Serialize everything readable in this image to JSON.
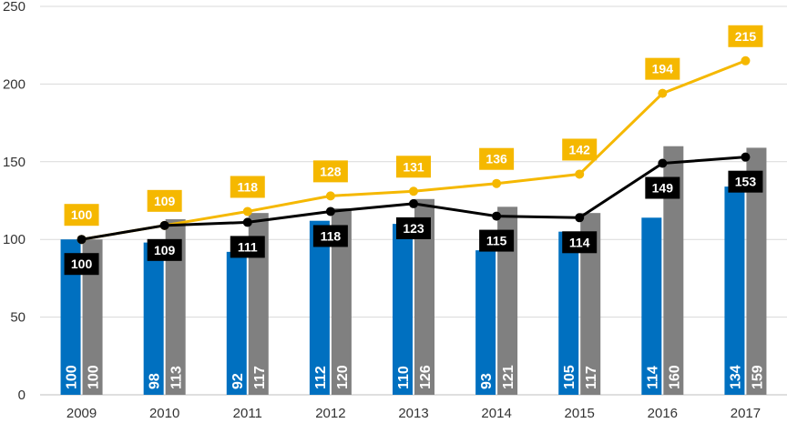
{
  "chart_data": {
    "type": "bar",
    "title": "",
    "xlabel": "",
    "ylabel": "",
    "ylim": [
      0,
      250
    ],
    "yticks": [
      "0",
      "50",
      "100",
      "150",
      "200",
      "250"
    ],
    "grid": true,
    "legend": "none",
    "categories": [
      "2009",
      "2010",
      "2011",
      "2012",
      "2013",
      "2014",
      "2015",
      "2016",
      "2017"
    ],
    "series": [
      {
        "name": "Blue bars",
        "kind": "bar",
        "color": "#0070C0",
        "values": [
          100,
          98,
          92,
          112,
          110,
          93,
          105,
          114,
          134
        ],
        "labels": [
          "100",
          "98",
          "92",
          "112",
          "110",
          "93",
          "105",
          "114",
          "134"
        ]
      },
      {
        "name": "Grey bars",
        "kind": "bar",
        "color": "#808080",
        "values": [
          100,
          113,
          117,
          120,
          126,
          121,
          117,
          160,
          159
        ],
        "labels": [
          "100",
          "113",
          "117",
          "120",
          "126",
          "121",
          "117",
          "160",
          "159"
        ]
      },
      {
        "name": "Yellow line",
        "kind": "line",
        "color": "#F5B800",
        "values": [
          100,
          109,
          118,
          128,
          131,
          136,
          142,
          194,
          215
        ],
        "labels": [
          "100",
          "109",
          "118",
          "128",
          "131",
          "136",
          "142",
          "194",
          "215"
        ]
      },
      {
        "name": "Black line",
        "kind": "line",
        "color": "#000000",
        "values": [
          100,
          109,
          111,
          118,
          123,
          115,
          114,
          149,
          153
        ],
        "labels": [
          "100",
          "109",
          "111",
          "118",
          "123",
          "115",
          "114",
          "149",
          "153"
        ]
      }
    ]
  }
}
